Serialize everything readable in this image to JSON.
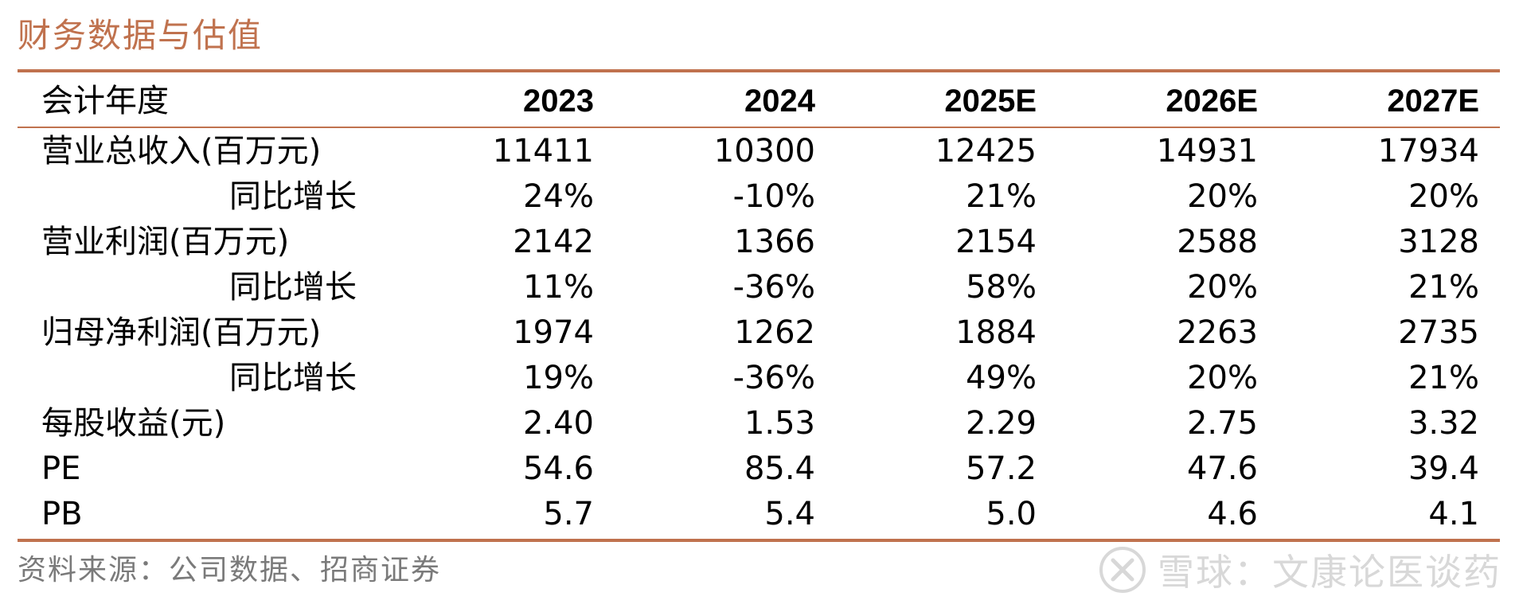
{
  "title": "财务数据与估值",
  "table": {
    "header": {
      "label": "会计年度",
      "years": [
        "2023",
        "2024",
        "2025E",
        "2026E",
        "2027E"
      ]
    },
    "rows": [
      {
        "label": "营业总收入(百万元)",
        "values": [
          "11411",
          "10300",
          "12425",
          "14931",
          "17934"
        ]
      },
      {
        "label": "同比增长",
        "values": [
          "24%",
          "-10%",
          "21%",
          "20%",
          "20%"
        ]
      },
      {
        "label": "营业利润(百万元)",
        "values": [
          "2142",
          "1366",
          "2154",
          "2588",
          "3128"
        ]
      },
      {
        "label": "同比增长",
        "values": [
          "11%",
          "-36%",
          "58%",
          "20%",
          "21%"
        ]
      },
      {
        "label": "归母净利润(百万元)",
        "values": [
          "1974",
          "1262",
          "1884",
          "2263",
          "2735"
        ]
      },
      {
        "label": "同比增长",
        "values": [
          "19%",
          "-36%",
          "49%",
          "20%",
          "21%"
        ]
      },
      {
        "label": "每股收益(元)",
        "values": [
          "2.40",
          "1.53",
          "2.29",
          "2.75",
          "3.32"
        ]
      },
      {
        "label": "PE",
        "values": [
          "54.6",
          "85.4",
          "57.2",
          "47.6",
          "39.4"
        ]
      },
      {
        "label": "PB",
        "values": [
          "5.7",
          "5.4",
          "5.0",
          "4.6",
          "4.1"
        ]
      }
    ]
  },
  "source": "资料来源：公司数据、招商证券",
  "watermark": {
    "text": "雪球：文康论医谈药",
    "icon": "snowball-logo-icon"
  },
  "colors": {
    "accent": "#c0724e",
    "source_text": "#7a7a7a",
    "watermark": "#d8d8d8"
  }
}
